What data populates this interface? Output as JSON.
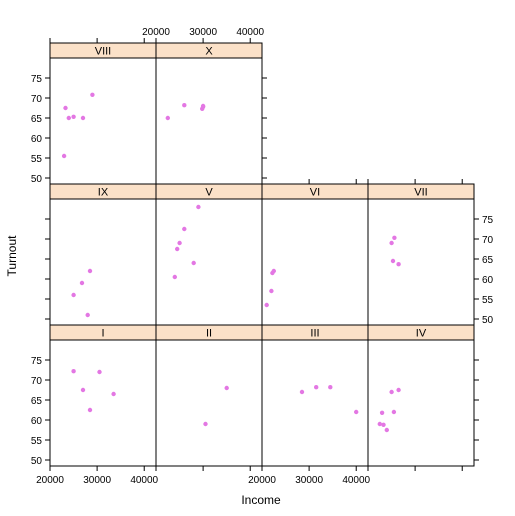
{
  "chart_data": {
    "type": "scatter",
    "xlabel": "Income",
    "ylabel": "Turnout",
    "xlim": [
      20000,
      42500
    ],
    "ylim": [
      48.5,
      80
    ],
    "x_ticks": [
      20000,
      30000,
      40000
    ],
    "y_ticks": [
      50,
      55,
      60,
      65,
      70,
      75
    ],
    "colors": {
      "point": "#e377e3",
      "strip": "#fbe1c8",
      "strip_border": "#000000",
      "frame": "#000000"
    },
    "panels": [
      {
        "label": "I",
        "points": [
          [
            25000,
            72.2
          ],
          [
            27000,
            67.5
          ],
          [
            28500,
            62.5
          ],
          [
            30500,
            72
          ],
          [
            33500,
            66.5
          ]
        ]
      },
      {
        "label": "II",
        "points": [
          [
            30500,
            59
          ],
          [
            35000,
            68
          ]
        ]
      },
      {
        "label": "III",
        "points": [
          [
            28500,
            67
          ],
          [
            31500,
            68.2
          ],
          [
            34500,
            68.2
          ],
          [
            40000,
            62
          ]
        ]
      },
      {
        "label": "IV",
        "points": [
          [
            22500,
            59
          ],
          [
            23000,
            61.8
          ],
          [
            23300,
            58.8
          ],
          [
            24000,
            57.5
          ],
          [
            25000,
            67
          ],
          [
            25500,
            62
          ],
          [
            26500,
            67.5
          ]
        ]
      },
      {
        "label": "IX",
        "points": [
          [
            25000,
            56
          ],
          [
            26800,
            59
          ],
          [
            28000,
            51
          ],
          [
            28500,
            62
          ]
        ]
      },
      {
        "label": "V",
        "points": [
          [
            24000,
            60.5
          ],
          [
            24500,
            67.5
          ],
          [
            25000,
            69
          ],
          [
            26000,
            72.5
          ],
          [
            28000,
            64
          ],
          [
            29000,
            78
          ]
        ]
      },
      {
        "label": "VI",
        "points": [
          [
            21000,
            53.5
          ],
          [
            22000,
            57
          ],
          [
            22200,
            61.5
          ],
          [
            22500,
            62
          ]
        ]
      },
      {
        "label": "VII",
        "points": [
          [
            25000,
            69
          ],
          [
            25300,
            64.5
          ],
          [
            25600,
            70.3
          ],
          [
            26500,
            63.7
          ]
        ]
      },
      {
        "label": "VIII",
        "points": [
          [
            23000,
            55.5
          ],
          [
            23300,
            67.5
          ],
          [
            24000,
            65
          ],
          [
            25000,
            65.3
          ],
          [
            27000,
            65
          ],
          [
            29000,
            70.8
          ]
        ]
      },
      {
        "label": "X",
        "points": [
          [
            22500,
            65
          ],
          [
            26000,
            68.2
          ],
          [
            29800,
            67.3
          ],
          [
            30000,
            67.8
          ],
          [
            30000,
            68
          ]
        ]
      }
    ]
  }
}
